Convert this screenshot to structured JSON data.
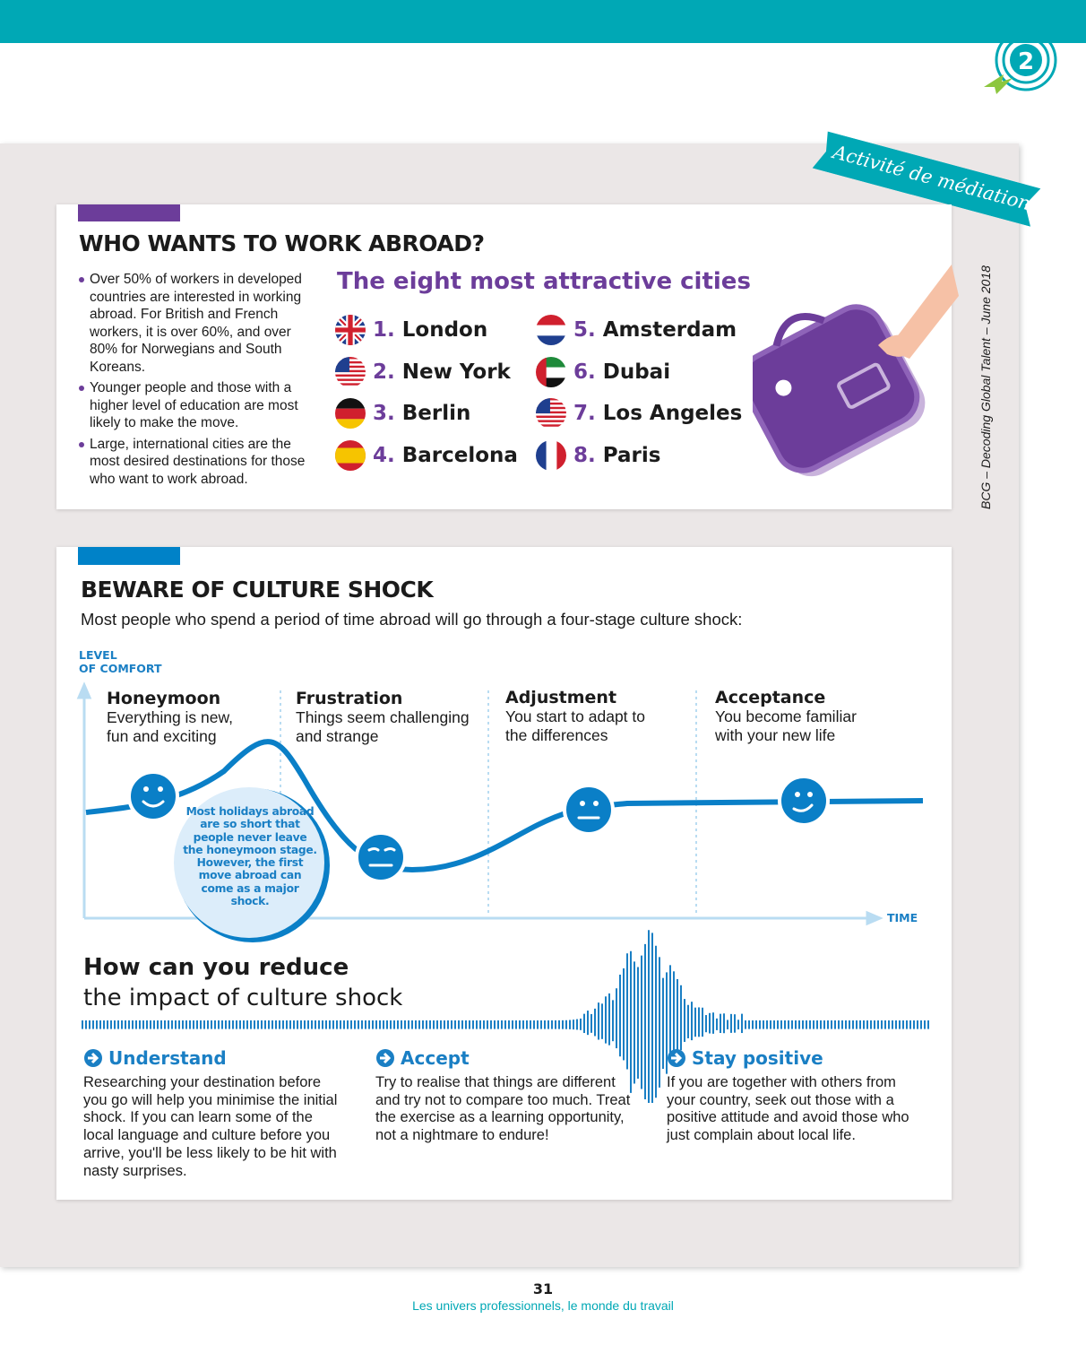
{
  "badge": "2",
  "tag": "Activité de médiation",
  "section1": {
    "title": "WHO WANTS TO WORK ABROAD?",
    "bullets": [
      "Over 50% of workers in developed countries are interested in working abroad. For British and French workers, it is over 60%, and over 80% for Norwegians and South Koreans.",
      "Younger people and those with a higher level of education are most likely to make the move.",
      "Large, international cities are the most desired destinations for those who want to work abroad."
    ],
    "cities_title": "The eight most attractive cities",
    "cities": [
      {
        "rank": "1.",
        "name": "London"
      },
      {
        "rank": "2.",
        "name": "New York"
      },
      {
        "rank": "3.",
        "name": "Berlin"
      },
      {
        "rank": "4.",
        "name": "Barcelona"
      },
      {
        "rank": "5.",
        "name": "Amsterdam"
      },
      {
        "rank": "6.",
        "name": "Dubai"
      },
      {
        "rank": "7.",
        "name": "Los Angeles"
      },
      {
        "rank": "8.",
        "name": "Paris"
      }
    ],
    "source": "BCG – Decoding Global Talent – June 2018"
  },
  "section2": {
    "title": "BEWARE OF CULTURE SHOCK",
    "intro": "Most people who spend a period of time abroad will go through a four-stage culture shock:",
    "axis_y": [
      "LEVEL",
      "OF COMFORT"
    ],
    "axis_x": "TIME",
    "stages": [
      {
        "name": "Honeymoon",
        "description": "Everything is new, fun and exciting"
      },
      {
        "name": "Frustration",
        "description": "Things seem challenging and strange"
      },
      {
        "name": "Adjustment",
        "description": "You start to adapt to the differences"
      },
      {
        "name": "Acceptance",
        "description": "You become familiar with your new life"
      }
    ],
    "callout": "Most holidays abroad are so short that people never leave the honeymoon stage. However, the first move abroad can come as a major shock.",
    "reduce_title": [
      "How can you reduce",
      "the impact of culture shock"
    ],
    "tips": [
      {
        "title": "Understand",
        "text": "Researching your destination before you go will help you minimise the initial shock. If you can learn some of the local language and culture before you arrive, you'll be less likely to be hit with nasty surprises."
      },
      {
        "title": "Accept",
        "text": "Try to realise that things are different and try not to compare too much. Treat the exercise as a learning opportunity, not a nightmare to endure!"
      },
      {
        "title": "Stay positive",
        "text": "If you are together with others from your country, seek out those with a positive attitude and avoid those who just complain about local life."
      }
    ]
  },
  "footer": {
    "page": "31",
    "text": "Les univers professionnels, le monde du travail"
  }
}
